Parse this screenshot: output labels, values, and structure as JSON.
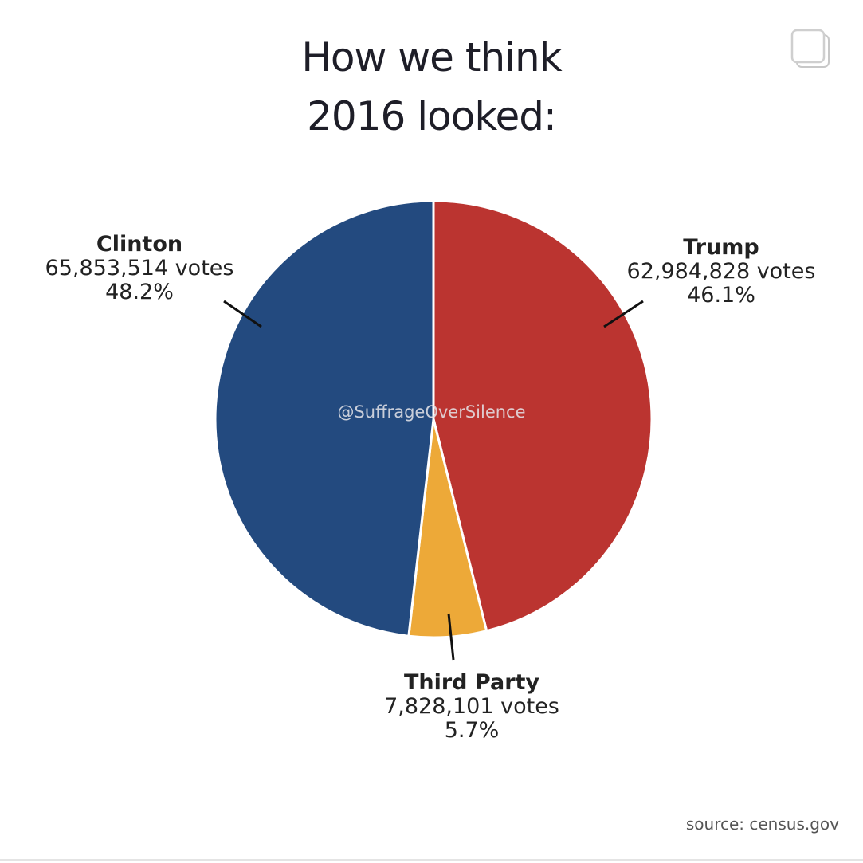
{
  "title_line1": "How we think",
  "title_line2": "2016 looked:",
  "watermark": "@SuffrageOverSilence",
  "source": "source: census.gov",
  "icons": {
    "corner": "copy-icon"
  },
  "chart_data": {
    "type": "pie",
    "title": "How we think 2016 looked:",
    "slices": [
      {
        "name": "Clinton",
        "votes_label": "65,853,514 votes",
        "votes": 65853514,
        "percent_label": "48.2%",
        "percent": 48.2,
        "color": "#234a7f"
      },
      {
        "name": "Trump",
        "votes_label": "62,984,828 votes",
        "votes": 62984828,
        "percent_label": "46.1%",
        "percent": 46.1,
        "color": "#bb3430"
      },
      {
        "name": "Third Party",
        "votes_label": "7,828,101 votes",
        "votes": 7828101,
        "percent_label": "5.7%",
        "percent": 5.7,
        "color": "#eda938"
      }
    ],
    "start": "12 o'clock",
    "order": [
      "Trump",
      "Third Party",
      "Clinton"
    ],
    "direction": "clockwise"
  }
}
